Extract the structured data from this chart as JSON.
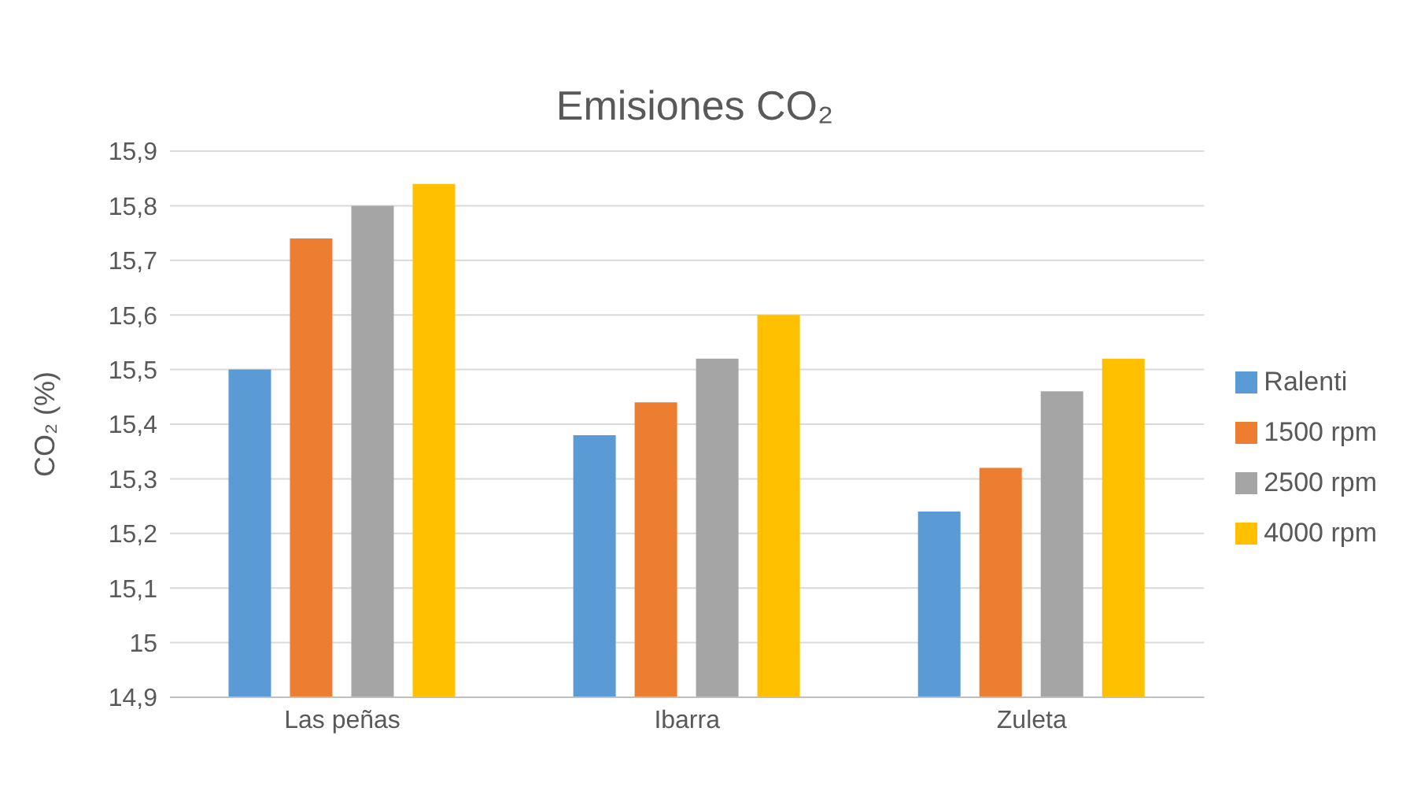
{
  "chart_data": {
    "type": "bar",
    "title": "Emisiones CO₂",
    "ylabel": "CO₂ (%)",
    "categories": [
      "Las peñas",
      "Ibarra",
      "Zuleta"
    ],
    "series": [
      {
        "name": "Ralenti",
        "color": "#5b9bd5",
        "values": [
          15.5,
          15.38,
          15.24
        ]
      },
      {
        "name": "1500 rpm",
        "color": "#ed7d31",
        "values": [
          15.74,
          15.44,
          15.32
        ]
      },
      {
        "name": "2500 rpm",
        "color": "#a5a5a5",
        "values": [
          15.8,
          15.52,
          15.46
        ]
      },
      {
        "name": "4000 rpm",
        "color": "#ffc000",
        "values": [
          15.84,
          15.6,
          15.52
        ]
      }
    ],
    "ylim": [
      14.9,
      15.9
    ],
    "yticks": [
      {
        "value": 14.9,
        "label": "14,9"
      },
      {
        "value": 15,
        "label": "15"
      },
      {
        "value": 15.1,
        "label": "15,1"
      },
      {
        "value": 15.2,
        "label": "15,2"
      },
      {
        "value": 15.3,
        "label": "15,3"
      },
      {
        "value": 15.4,
        "label": "15,4"
      },
      {
        "value": 15.5,
        "label": "15,5"
      },
      {
        "value": 15.6,
        "label": "15,6"
      },
      {
        "value": 15.7,
        "label": "15,7"
      },
      {
        "value": 15.8,
        "label": "15,8"
      },
      {
        "value": 15.9,
        "label": "15,9"
      }
    ],
    "grid": "y",
    "legend": "right"
  }
}
